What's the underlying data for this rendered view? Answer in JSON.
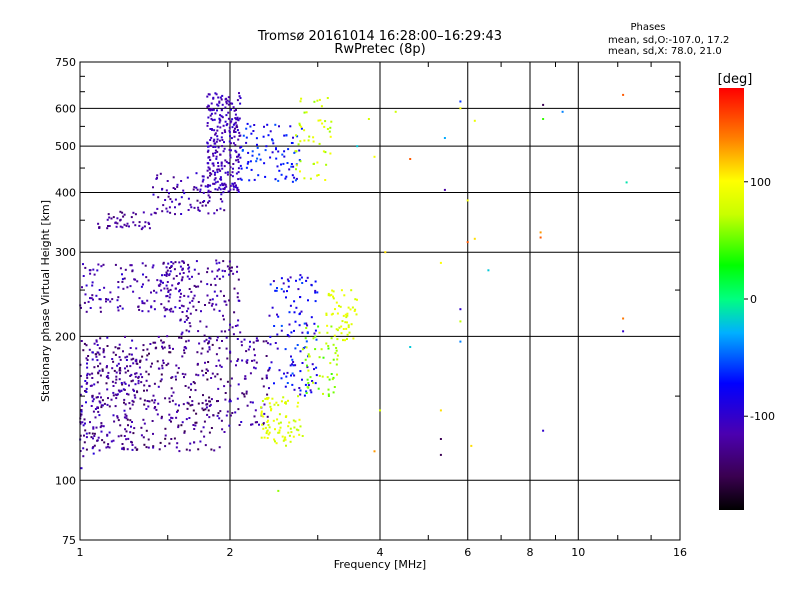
{
  "chart_data": {
    "type": "scatter",
    "title": "Tromsø 20161014 16:28:00–16:29:43",
    "subtitle": "RwPretec (8p)",
    "xlabel": "Frequency [MHz]",
    "ylabel": "Stationary phase Virtual Height [km]",
    "x_scale": "log",
    "y_scale": "log",
    "xlim": [
      1,
      16
    ],
    "ylim": [
      75,
      750
    ],
    "x_ticks": [
      {
        "value": 1,
        "label": "1"
      },
      {
        "value": 2,
        "label": "2"
      },
      {
        "value": 4,
        "label": "4"
      },
      {
        "value": 6,
        "label": "6"
      },
      {
        "value": 8,
        "label": "8"
      },
      {
        "value": 10,
        "label": "10"
      },
      {
        "value": 16,
        "label": "16"
      }
    ],
    "y_ticks": [
      {
        "value": 75,
        "label": "75"
      },
      {
        "value": 100,
        "label": "100"
      },
      {
        "value": 200,
        "label": "200"
      },
      {
        "value": 300,
        "label": "300"
      },
      {
        "value": 400,
        "label": "400"
      },
      {
        "value": 500,
        "label": "500"
      },
      {
        "value": 600,
        "label": "600"
      },
      {
        "value": 750,
        "label": "750"
      }
    ],
    "grid": true,
    "stats": {
      "heading": "Phases",
      "line_o": "mean, sd,O:-107.0, 17.2",
      "line_x": "mean, sd,X:  78.0, 21.0"
    },
    "colorbar": {
      "label": "[deg]",
      "range": [
        -180,
        180
      ],
      "ticks": [
        {
          "value": 100,
          "label": "100"
        },
        {
          "value": 0,
          "label": "0"
        },
        {
          "value": -100,
          "label": "-100"
        }
      ]
    },
    "clusters": [
      {
        "x": [
          1.0,
          1.3
        ],
        "y": [
          115,
          200
        ],
        "n": 260,
        "phase": -125,
        "spread": 25
      },
      {
        "x": [
          1.3,
          1.95
        ],
        "y": [
          115,
          200
        ],
        "n": 260,
        "phase": -130,
        "spread": 25
      },
      {
        "x": [
          1.95,
          2.4
        ],
        "y": [
          130,
          200
        ],
        "n": 90,
        "phase": -120,
        "spread": 25
      },
      {
        "x": [
          1.0,
          1.7
        ],
        "y": [
          225,
          285
        ],
        "n": 150,
        "phase": -115,
        "spread": 20
      },
      {
        "x": [
          1.45,
          2.1
        ],
        "y": [
          195,
          290
        ],
        "n": 140,
        "phase": -120,
        "spread": 20
      },
      {
        "x": [
          2.4,
          3.0
        ],
        "y": [
          150,
          270
        ],
        "n": 120,
        "phase": -80,
        "spread": 30
      },
      {
        "x": [
          2.3,
          2.8
        ],
        "y": [
          118,
          150
        ],
        "n": 80,
        "phase": 82,
        "spread": 15
      },
      {
        "x": [
          2.8,
          3.3
        ],
        "y": [
          150,
          210
        ],
        "n": 55,
        "phase": 60,
        "spread": 20
      },
      {
        "x": [
          3.1,
          3.6
        ],
        "y": [
          195,
          250
        ],
        "n": 55,
        "phase": 85,
        "spread": 12
      },
      {
        "x": [
          1.08,
          1.4
        ],
        "y": [
          335,
          365
        ],
        "n": 45,
        "phase": -125,
        "spread": 15
      },
      {
        "x": [
          1.4,
          1.95
        ],
        "y": [
          360,
          440
        ],
        "n": 90,
        "phase": -115,
        "spread": 20
      },
      {
        "x": [
          1.8,
          2.1
        ],
        "y": [
          400,
          650
        ],
        "n": 260,
        "phase": -110,
        "spread": 15
      },
      {
        "x": [
          2.1,
          2.8
        ],
        "y": [
          420,
          560
        ],
        "n": 90,
        "phase": -75,
        "spread": 25
      },
      {
        "x": [
          2.7,
          3.2
        ],
        "y": [
          420,
          650
        ],
        "n": 50,
        "phase": 80,
        "spread": 20
      },
      {
        "x": [
          1.0,
          1.1
        ],
        "y": [
          100,
          200
        ],
        "n": 25,
        "phase": -110,
        "spread": 20
      }
    ],
    "isolated_points": [
      {
        "x": 2.5,
        "y": 95,
        "phase": 60
      },
      {
        "x": 3.8,
        "y": 570,
        "phase": 80
      },
      {
        "x": 3.9,
        "y": 475,
        "phase": 95
      },
      {
        "x": 4.3,
        "y": 590,
        "phase": 75
      },
      {
        "x": 4.6,
        "y": 470,
        "phase": 150
      },
      {
        "x": 5.4,
        "y": 405,
        "phase": -120
      },
      {
        "x": 5.4,
        "y": 520,
        "phase": -30
      },
      {
        "x": 5.8,
        "y": 600,
        "phase": 100
      },
      {
        "x": 5.8,
        "y": 620,
        "phase": -60
      },
      {
        "x": 6.0,
        "y": 315,
        "phase": 150
      },
      {
        "x": 6.2,
        "y": 320,
        "phase": 110
      },
      {
        "x": 6.2,
        "y": 565,
        "phase": 90
      },
      {
        "x": 6.6,
        "y": 275,
        "phase": -20
      },
      {
        "x": 5.3,
        "y": 285,
        "phase": 100
      },
      {
        "x": 5.8,
        "y": 228,
        "phase": -100
      },
      {
        "x": 5.8,
        "y": 215,
        "phase": 70
      },
      {
        "x": 5.8,
        "y": 195,
        "phase": -40
      },
      {
        "x": 4.6,
        "y": 190,
        "phase": -20
      },
      {
        "x": 4.0,
        "y": 140,
        "phase": 80
      },
      {
        "x": 5.3,
        "y": 140,
        "phase": 110
      },
      {
        "x": 5.3,
        "y": 122,
        "phase": -150
      },
      {
        "x": 5.3,
        "y": 113,
        "phase": -150
      },
      {
        "x": 6.1,
        "y": 118,
        "phase": 110
      },
      {
        "x": 3.9,
        "y": 115,
        "phase": 130
      },
      {
        "x": 8.4,
        "y": 322,
        "phase": 150
      },
      {
        "x": 8.4,
        "y": 330,
        "phase": 130
      },
      {
        "x": 8.5,
        "y": 610,
        "phase": -150
      },
      {
        "x": 8.5,
        "y": 570,
        "phase": 40
      },
      {
        "x": 8.5,
        "y": 127,
        "phase": -100
      },
      {
        "x": 9.3,
        "y": 590,
        "phase": -40
      },
      {
        "x": 12.3,
        "y": 640,
        "phase": 150
      },
      {
        "x": 12.5,
        "y": 420,
        "phase": -10
      },
      {
        "x": 12.3,
        "y": 218,
        "phase": 140
      },
      {
        "x": 12.3,
        "y": 205,
        "phase": -100
      },
      {
        "x": 6.0,
        "y": 385,
        "phase": 95
      },
      {
        "x": 3.6,
        "y": 500,
        "phase": -20
      },
      {
        "x": 4.1,
        "y": 300,
        "phase": 110
      }
    ]
  }
}
